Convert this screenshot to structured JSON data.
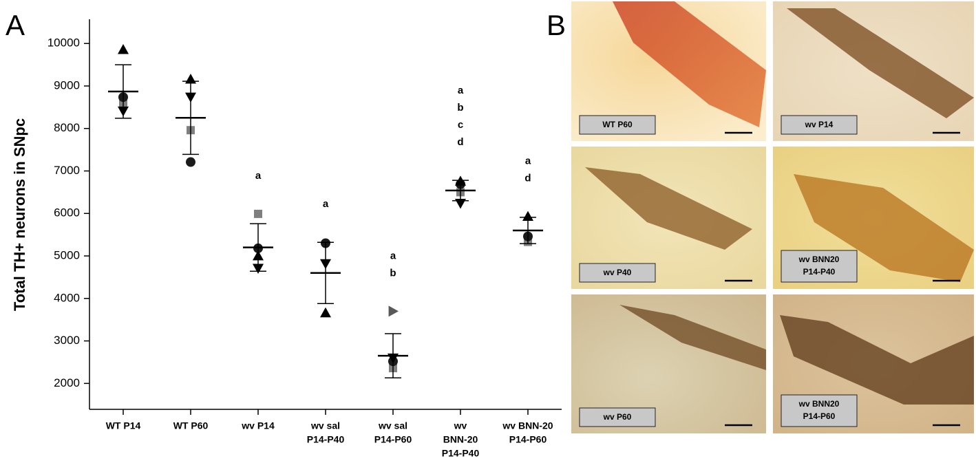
{
  "panel_a_label": "A",
  "chart_data": {
    "type": "scatter",
    "y_label": "Total TH+ neurons in SNpc",
    "categories": [
      [
        "WT P14"
      ],
      [
        "WT P60"
      ],
      [
        "wv P14"
      ],
      [
        "wv sal",
        "P14-P40"
      ],
      [
        "wv sal",
        "P14-P60"
      ],
      [
        "wv",
        "BNN-20",
        "P14-P40"
      ],
      [
        "wv BNN-20",
        "P14-P60"
      ]
    ],
    "series": [
      {
        "marker": "square",
        "color": "#7f7f7f",
        "values": [
          8600,
          7960,
          5990,
          null,
          2360,
          6500,
          5330
        ]
      },
      {
        "marker": "circle",
        "color": "#1a1a1a",
        "values": [
          8737,
          7210,
          5180,
          5300,
          2520,
          6690,
          5460
        ]
      },
      {
        "marker": "triangle-up",
        "color": "#000000",
        "values": [
          9857,
          9160,
          5000,
          3660,
          null,
          6760,
          5930
        ]
      },
      {
        "marker": "triangle-down",
        "color": "#000000",
        "values": [
          8412,
          8740,
          4710,
          4820,
          2600,
          6240,
          null
        ]
      },
      {
        "marker": "triangle-right",
        "color": "#595959",
        "values": [
          null,
          null,
          null,
          null,
          3700,
          null,
          null
        ]
      }
    ],
    "means": [
      8870,
      8250,
      5200,
      4600,
      2650,
      6540,
      5600
    ],
    "errors": [
      630,
      860,
      560,
      720,
      520,
      240,
      310
    ],
    "annotations": [
      [],
      [],
      [
        "a"
      ],
      [
        "a"
      ],
      [
        "a",
        "b"
      ],
      [
        "a",
        "b",
        "c",
        "d"
      ],
      [
        "a",
        "d"
      ]
    ],
    "ylim": [
      1390,
      10570
    ],
    "yticks": [
      2000,
      3000,
      4000,
      5000,
      6000,
      7000,
      8000,
      9000,
      10000
    ]
  },
  "panel_b": {
    "label": "B",
    "images": [
      {
        "label": [
          "WT P60"
        ]
      },
      {
        "label": [
          "wv P14"
        ]
      },
      {
        "label": [
          "wv P40"
        ]
      },
      {
        "label": [
          "wv BNN20",
          "P14-P40"
        ]
      },
      {
        "label": [
          "wv P60"
        ]
      },
      {
        "label": [
          "wv BNN20",
          "P14-P60"
        ]
      }
    ]
  }
}
